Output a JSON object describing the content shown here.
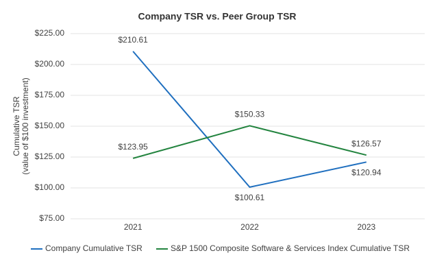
{
  "chart_data": {
    "type": "line",
    "title": "Company TSR vs. Peer Group TSR",
    "ylabel": [
      "Cumulative TSR",
      "(value of $100 investment)"
    ],
    "categories": [
      "2021",
      "2022",
      "2023"
    ],
    "series": [
      {
        "name": "Company Cumulative TSR",
        "color": "#1f6fbf",
        "values": [
          210.61,
          100.61,
          120.94
        ],
        "value_labels": [
          "$210.61",
          "$100.61",
          "$120.94"
        ]
      },
      {
        "name": "S&P 1500 Composite Software & Services Index Cumulative TSR",
        "color": "#23843f",
        "values": [
          123.95,
          150.33,
          126.57
        ],
        "value_labels": [
          "$123.95",
          "$150.33",
          "$126.57"
        ]
      }
    ],
    "ylim": [
      75,
      225
    ],
    "yticks": [
      {
        "value": 75,
        "label": "$75.00"
      },
      {
        "value": 100,
        "label": "$100.00"
      },
      {
        "value": 125,
        "label": "$125.00"
      },
      {
        "value": 150,
        "label": "$150.00"
      },
      {
        "value": 175,
        "label": "$175.00"
      },
      {
        "value": 200,
        "label": "$200.00"
      },
      {
        "value": 225,
        "label": "$225.00"
      }
    ],
    "grid": true,
    "legend": "bottom"
  }
}
